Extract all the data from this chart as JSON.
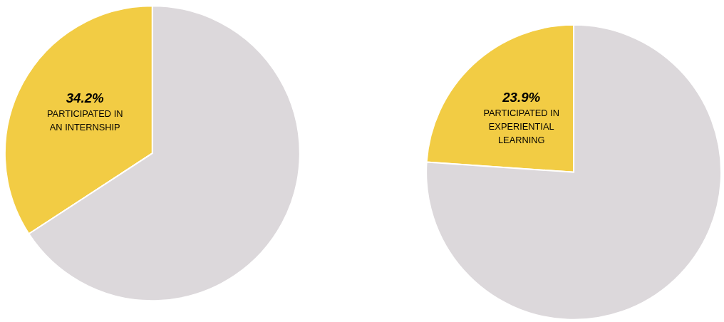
{
  "chart_data": [
    {
      "type": "pie",
      "categories": [
        "PARTICIPATED IN AN INTERNSHIP",
        null
      ],
      "values": [
        34.2,
        65.8
      ],
      "colors": [
        "#f2cc44",
        "#dcd8db"
      ],
      "value_labels": [
        "34.2%",
        null
      ]
    },
    {
      "type": "pie",
      "categories": [
        "PARTICIPATED IN EXPERIENTIAL LEARNING",
        null
      ],
      "values": [
        23.9,
        76.1
      ],
      "colors": [
        "#f2cc44",
        "#dcd8db"
      ],
      "value_labels": [
        "23.9%",
        null
      ]
    }
  ]
}
